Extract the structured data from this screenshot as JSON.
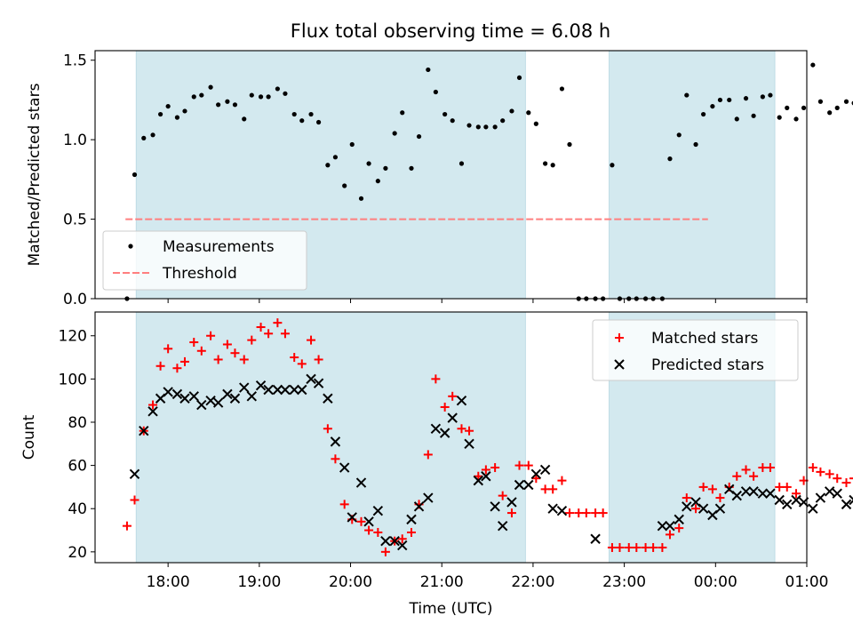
{
  "chart_data": [
    {
      "type": "scatter",
      "title": "Flux total observing time = 6.08 h",
      "ylabel": "Matched/Predicted stars",
      "xlabel": "",
      "ylim": [
        0,
        1.56
      ],
      "yticks": [
        "0.0",
        "0.5",
        "1.0",
        "1.5"
      ],
      "threshold": {
        "name": "Threshold",
        "value": 0.5,
        "x_range": [
          "17:32",
          "23:55"
        ],
        "color": "#ff7f7f"
      },
      "shaded_intervals": [
        [
          "17:39",
          "21:55"
        ],
        [
          "22:50",
          "00:39"
        ]
      ],
      "shade_color": "#d3e9ef",
      "legend": {
        "placement": "lower-left",
        "entries": [
          "Measurements",
          "Threshold"
        ]
      },
      "series": [
        {
          "name": "Measurements",
          "color": "#000000",
          "marker": "dot",
          "points": [
            [
              "17:33",
              0.0
            ],
            [
              "17:38",
              0.78
            ],
            [
              "17:44",
              1.01
            ],
            [
              "17:50",
              1.03
            ],
            [
              "17:55",
              1.16
            ],
            [
              "18:00",
              1.21
            ],
            [
              "18:06",
              1.14
            ],
            [
              "18:11",
              1.18
            ],
            [
              "18:17",
              1.27
            ],
            [
              "18:22",
              1.28
            ],
            [
              "18:28",
              1.33
            ],
            [
              "18:33",
              1.22
            ],
            [
              "18:39",
              1.24
            ],
            [
              "18:44",
              1.22
            ],
            [
              "18:50",
              1.13
            ],
            [
              "18:55",
              1.28
            ],
            [
              "19:01",
              1.27
            ],
            [
              "19:06",
              1.27
            ],
            [
              "19:12",
              1.32
            ],
            [
              "19:17",
              1.29
            ],
            [
              "19:23",
              1.16
            ],
            [
              "19:28",
              1.12
            ],
            [
              "19:34",
              1.16
            ],
            [
              "19:39",
              1.11
            ],
            [
              "19:45",
              0.84
            ],
            [
              "19:50",
              0.89
            ],
            [
              "19:56",
              0.71
            ],
            [
              "20:01",
              0.97
            ],
            [
              "20:07",
              0.63
            ],
            [
              "20:12",
              0.85
            ],
            [
              "20:18",
              0.74
            ],
            [
              "20:23",
              0.82
            ],
            [
              "20:29",
              1.04
            ],
            [
              "20:34",
              1.17
            ],
            [
              "20:40",
              0.82
            ],
            [
              "20:45",
              1.02
            ],
            [
              "20:51",
              1.44
            ],
            [
              "20:56",
              1.3
            ],
            [
              "21:02",
              1.16
            ],
            [
              "21:07",
              1.12
            ],
            [
              "21:13",
              0.85
            ],
            [
              "21:18",
              1.09
            ],
            [
              "21:24",
              1.08
            ],
            [
              "21:29",
              1.08
            ],
            [
              "21:35",
              1.08
            ],
            [
              "21:40",
              1.12
            ],
            [
              "21:46",
              1.18
            ],
            [
              "21:51",
              1.39
            ],
            [
              "21:57",
              1.17
            ],
            [
              "22:02",
              1.1
            ],
            [
              "22:08",
              0.85
            ],
            [
              "22:13",
              0.84
            ],
            [
              "22:19",
              1.32
            ],
            [
              "22:24",
              0.97
            ],
            [
              "22:30",
              0.0
            ],
            [
              "22:35",
              0.0
            ],
            [
              "22:41",
              0.0
            ],
            [
              "22:46",
              0.0
            ],
            [
              "22:52",
              0.84
            ],
            [
              "22:57",
              0.0
            ],
            [
              "23:03",
              0.0
            ],
            [
              "23:08",
              0.0
            ],
            [
              "23:14",
              0.0
            ],
            [
              "23:19",
              0.0
            ],
            [
              "23:25",
              0.0
            ],
            [
              "23:30",
              0.88
            ],
            [
              "23:36",
              1.03
            ],
            [
              "23:41",
              1.28
            ],
            [
              "23:47",
              0.97
            ],
            [
              "23:52",
              1.16
            ],
            [
              "23:58",
              1.21
            ],
            [
              "00:03",
              1.25
            ],
            [
              "00:09",
              1.25
            ],
            [
              "00:14",
              1.13
            ],
            [
              "00:20",
              1.26
            ],
            [
              "00:25",
              1.15
            ],
            [
              "00:31",
              1.27
            ],
            [
              "00:36",
              1.28
            ],
            [
              "00:42",
              1.14
            ],
            [
              "00:47",
              1.2
            ],
            [
              "00:53",
              1.13
            ],
            [
              "00:58",
              1.2
            ],
            [
              "01:04",
              1.47
            ],
            [
              "01:09",
              1.24
            ],
            [
              "01:15",
              1.17
            ],
            [
              "01:20",
              1.2
            ],
            [
              "01:26",
              1.24
            ],
            [
              "01:31",
              1.23
            ]
          ]
        }
      ]
    },
    {
      "type": "scatter",
      "title": "",
      "ylabel": "Count",
      "xlabel": "Time (UTC)",
      "ylim": [
        15,
        131
      ],
      "yticks": [
        "20",
        "40",
        "60",
        "80",
        "100",
        "120"
      ],
      "xticks": [
        "18:00",
        "19:00",
        "20:00",
        "21:00",
        "22:00",
        "23:00",
        "00:00",
        "01:00"
      ],
      "shaded_intervals": [
        [
          "17:39",
          "21:55"
        ],
        [
          "22:50",
          "00:39"
        ]
      ],
      "shade_color": "#d3e9ef",
      "legend": {
        "placement": "top-right",
        "entries": [
          "Matched stars",
          "Predicted stars"
        ]
      },
      "series": [
        {
          "name": "Matched stars",
          "color": "#ff0000",
          "marker": "plus",
          "points": [
            [
              "17:33",
              32
            ],
            [
              "17:38",
              44
            ],
            [
              "17:44",
              76
            ],
            [
              "17:50",
              88
            ],
            [
              "17:55",
              106
            ],
            [
              "18:00",
              114
            ],
            [
              "18:06",
              105
            ],
            [
              "18:11",
              108
            ],
            [
              "18:17",
              117
            ],
            [
              "18:22",
              113
            ],
            [
              "18:28",
              120
            ],
            [
              "18:33",
              109
            ],
            [
              "18:39",
              116
            ],
            [
              "18:44",
              112
            ],
            [
              "18:50",
              109
            ],
            [
              "18:55",
              118
            ],
            [
              "19:01",
              124
            ],
            [
              "19:06",
              121
            ],
            [
              "19:12",
              126
            ],
            [
              "19:17",
              121
            ],
            [
              "19:23",
              110
            ],
            [
              "19:28",
              107
            ],
            [
              "19:34",
              118
            ],
            [
              "19:39",
              109
            ],
            [
              "19:45",
              77
            ],
            [
              "19:50",
              63
            ],
            [
              "19:56",
              42
            ],
            [
              "20:01",
              35
            ],
            [
              "20:07",
              34
            ],
            [
              "20:12",
              30
            ],
            [
              "20:18",
              29
            ],
            [
              "20:23",
              20
            ],
            [
              "20:29",
              25
            ],
            [
              "20:34",
              26
            ],
            [
              "20:40",
              29
            ],
            [
              "20:45",
              42
            ],
            [
              "20:51",
              65
            ],
            [
              "20:56",
              100
            ],
            [
              "21:02",
              87
            ],
            [
              "21:07",
              92
            ],
            [
              "21:13",
              77
            ],
            [
              "21:18",
              76
            ],
            [
              "21:24",
              55
            ],
            [
              "21:29",
              58
            ],
            [
              "21:35",
              59
            ],
            [
              "21:40",
              46
            ],
            [
              "21:46",
              38
            ],
            [
              "21:51",
              60
            ],
            [
              "21:57",
              60
            ],
            [
              "22:02",
              54
            ],
            [
              "22:08",
              49
            ],
            [
              "22:13",
              49
            ],
            [
              "22:19",
              53
            ],
            [
              "22:24",
              38
            ],
            [
              "22:30",
              38
            ],
            [
              "22:35",
              38
            ],
            [
              "22:41",
              38
            ],
            [
              "22:46",
              38
            ],
            [
              "22:52",
              22
            ],
            [
              "22:57",
              22
            ],
            [
              "23:03",
              22
            ],
            [
              "23:08",
              22
            ],
            [
              "23:14",
              22
            ],
            [
              "23:19",
              22
            ],
            [
              "23:25",
              22
            ],
            [
              "23:30",
              28
            ],
            [
              "23:36",
              31
            ],
            [
              "23:41",
              45
            ],
            [
              "23:47",
              40
            ],
            [
              "23:52",
              50
            ],
            [
              "23:58",
              49
            ],
            [
              "00:03",
              45
            ],
            [
              "00:09",
              50
            ],
            [
              "00:14",
              55
            ],
            [
              "00:20",
              58
            ],
            [
              "00:25",
              55
            ],
            [
              "00:31",
              59
            ],
            [
              "00:36",
              59
            ],
            [
              "00:42",
              50
            ],
            [
              "00:47",
              50
            ],
            [
              "00:53",
              47
            ],
            [
              "00:58",
              53
            ],
            [
              "01:04",
              59
            ],
            [
              "01:09",
              57
            ],
            [
              "01:15",
              56
            ],
            [
              "01:20",
              54
            ],
            [
              "01:26",
              52
            ],
            [
              "01:31",
              54
            ]
          ]
        },
        {
          "name": "Predicted stars",
          "color": "#000000",
          "marker": "x",
          "points": [
            [
              "17:38",
              56
            ],
            [
              "17:44",
              76
            ],
            [
              "17:50",
              85
            ],
            [
              "17:55",
              91
            ],
            [
              "18:00",
              94
            ],
            [
              "18:06",
              93
            ],
            [
              "18:11",
              91
            ],
            [
              "18:17",
              92
            ],
            [
              "18:22",
              88
            ],
            [
              "18:28",
              90
            ],
            [
              "18:33",
              89
            ],
            [
              "18:39",
              93
            ],
            [
              "18:44",
              91
            ],
            [
              "18:50",
              96
            ],
            [
              "18:55",
              92
            ],
            [
              "19:01",
              97
            ],
            [
              "19:06",
              95
            ],
            [
              "19:12",
              95
            ],
            [
              "19:17",
              95
            ],
            [
              "19:23",
              95
            ],
            [
              "19:28",
              95
            ],
            [
              "19:34",
              100
            ],
            [
              "19:39",
              98
            ],
            [
              "19:45",
              91
            ],
            [
              "19:50",
              71
            ],
            [
              "19:56",
              59
            ],
            [
              "20:01",
              36
            ],
            [
              "20:07",
              52
            ],
            [
              "20:12",
              34
            ],
            [
              "20:18",
              39
            ],
            [
              "20:23",
              25
            ],
            [
              "20:29",
              25
            ],
            [
              "20:34",
              23
            ],
            [
              "20:40",
              35
            ],
            [
              "20:45",
              41
            ],
            [
              "20:51",
              45
            ],
            [
              "20:56",
              77
            ],
            [
              "21:02",
              75
            ],
            [
              "21:07",
              82
            ],
            [
              "21:13",
              90
            ],
            [
              "21:18",
              70
            ],
            [
              "21:24",
              53
            ],
            [
              "21:29",
              55
            ],
            [
              "21:35",
              41
            ],
            [
              "21:40",
              32
            ],
            [
              "21:46",
              43
            ],
            [
              "21:51",
              51
            ],
            [
              "21:57",
              51
            ],
            [
              "22:02",
              56
            ],
            [
              "22:08",
              58
            ],
            [
              "22:13",
              40
            ],
            [
              "22:19",
              39
            ],
            [
              "22:41",
              26
            ],
            [
              "23:25",
              32
            ],
            [
              "23:30",
              32
            ],
            [
              "23:36",
              35
            ],
            [
              "23:41",
              41
            ],
            [
              "23:47",
              43
            ],
            [
              "23:52",
              40
            ],
            [
              "23:58",
              37
            ],
            [
              "00:03",
              40
            ],
            [
              "00:09",
              49
            ],
            [
              "00:14",
              46
            ],
            [
              "00:20",
              48
            ],
            [
              "00:25",
              48
            ],
            [
              "00:31",
              47
            ],
            [
              "00:36",
              47
            ],
            [
              "00:42",
              44
            ],
            [
              "00:47",
              42
            ],
            [
              "00:53",
              44
            ],
            [
              "00:58",
              43
            ],
            [
              "01:04",
              40
            ],
            [
              "01:09",
              45
            ],
            [
              "01:15",
              48
            ],
            [
              "01:20",
              47
            ],
            [
              "01:26",
              42
            ],
            [
              "01:31",
              44
            ]
          ]
        }
      ]
    }
  ]
}
